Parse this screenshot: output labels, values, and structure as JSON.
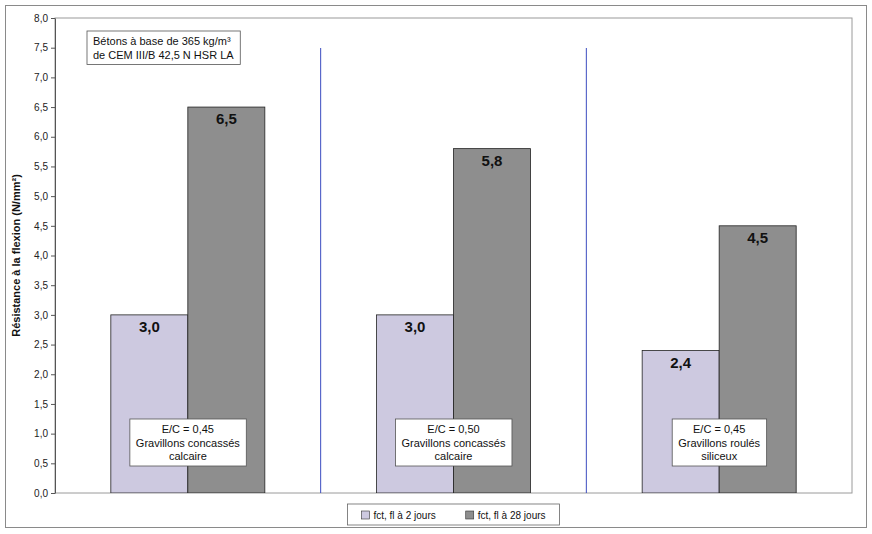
{
  "chart_data": {
    "type": "bar",
    "y_label": "Résistance à la flexion (N/mm²)",
    "annotations": [
      "Bétons à base de 365 kg/m³\nde CEM III/B 42,5 N HSR LA"
    ],
    "categories": [
      "E/C = 0,45\nGravillons concassés\ncalcaire",
      "E/C = 0,50\nGravillons concassés\ncalcaire",
      "E/C = 0,45\nGravillons roulés\nsiliceux"
    ],
    "series": [
      {
        "name": "fct, fl à 2 jours",
        "color": "#cdc9e0",
        "values": [
          3.0,
          3.0,
          2.4
        ],
        "value_labels": [
          "3,0",
          "3,0",
          "2,4"
        ]
      },
      {
        "name": "fct, fl à 28 jours",
        "color": "#8e8e8e",
        "values": [
          6.5,
          5.8,
          4.5
        ],
        "value_labels": [
          "6,5",
          "5,8",
          "4,5"
        ]
      }
    ],
    "ylim": [
      0,
      8
    ],
    "yticks": [
      {
        "value": 0,
        "label": "0,0"
      },
      {
        "value": 0.5,
        "label": "0,5"
      },
      {
        "value": 1,
        "label": "1,0"
      },
      {
        "value": 1.5,
        "label": "1,5"
      },
      {
        "value": 2,
        "label": "2,0"
      },
      {
        "value": 2.5,
        "label": "2,5"
      },
      {
        "value": 3,
        "label": "3,0"
      },
      {
        "value": 3.5,
        "label": "3,5"
      },
      {
        "value": 4,
        "label": "4,0"
      },
      {
        "value": 4.5,
        "label": "4,5"
      },
      {
        "value": 5,
        "label": "5,0"
      },
      {
        "value": 5.5,
        "label": "5,5"
      },
      {
        "value": 6,
        "label": "6,0"
      },
      {
        "value": 6.5,
        "label": "6,5"
      },
      {
        "value": 7,
        "label": "7,0"
      },
      {
        "value": 7.5,
        "label": "7,5"
      },
      {
        "value": 8,
        "label": "8,0"
      }
    ],
    "grid": false,
    "legend": "bottom",
    "data_labels": true,
    "tick_labels": "y"
  }
}
